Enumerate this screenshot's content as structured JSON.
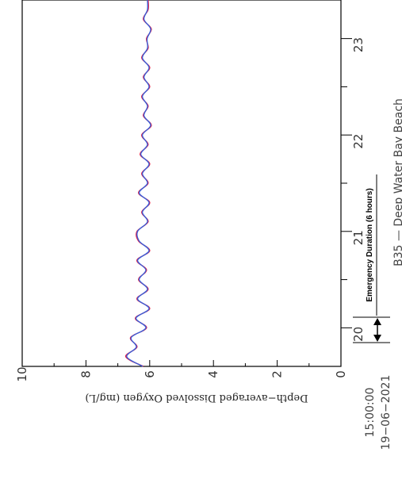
{
  "chart_data": {
    "type": "line",
    "orientation": "rotated-90",
    "ylabel": "Depth−averaged Dissolved Oxygen (mg/L)",
    "yticks": [
      "0",
      "2",
      "4",
      "6",
      "8",
      "10"
    ],
    "ylim": [
      0,
      10
    ],
    "xticks": [
      "20",
      "21",
      "22",
      "23"
    ],
    "xlim": [
      19.6,
      23.4
    ],
    "start_label": [
      "15:00:00",
      "19−06−2021"
    ],
    "annotation": "Emergency Duration  (6 hours)",
    "caption": "B35 — Deep Water Bay Beach",
    "grid": false,
    "series": [
      {
        "color": "#e8163c",
        "x": [
          19.6,
          19.7,
          19.8,
          19.9,
          20.0,
          20.1,
          20.2,
          20.3,
          20.4,
          20.5,
          20.6,
          20.7,
          20.8,
          20.9,
          21.0,
          21.1,
          21.2,
          21.3,
          21.4,
          21.5,
          21.6,
          21.7,
          21.8,
          21.9,
          22.0,
          22.1,
          22.2,
          22.3,
          22.4,
          22.5,
          22.6,
          22.7,
          22.8,
          22.9,
          23.0,
          23.1,
          23.2,
          23.3,
          23.4
        ],
        "y": [
          6.2,
          6.75,
          6.4,
          6.6,
          6.1,
          6.45,
          6.0,
          6.4,
          6.05,
          6.35,
          6.1,
          6.4,
          6.0,
          6.35,
          6.4,
          6.05,
          6.25,
          6.0,
          6.35,
          6.05,
          6.25,
          6.0,
          6.3,
          6.05,
          6.25,
          5.95,
          6.2,
          6.05,
          6.25,
          6.0,
          6.2,
          6.0,
          6.25,
          6.05,
          6.1,
          5.95,
          6.2,
          6.05,
          6.05
        ]
      },
      {
        "color": "#3a5fd8",
        "x": [
          19.6,
          19.7,
          19.8,
          19.9,
          20.0,
          20.1,
          20.2,
          20.3,
          20.4,
          20.5,
          20.6,
          20.7,
          20.8,
          20.9,
          21.0,
          21.1,
          21.2,
          21.3,
          21.4,
          21.5,
          21.6,
          21.7,
          21.8,
          21.9,
          22.0,
          22.1,
          22.2,
          22.3,
          22.4,
          22.5,
          22.6,
          22.7,
          22.8,
          22.9,
          23.0,
          23.1,
          23.2,
          23.3,
          23.4
        ],
        "y": [
          6.22,
          6.72,
          6.42,
          6.58,
          6.12,
          6.43,
          6.02,
          6.38,
          6.07,
          6.33,
          6.12,
          6.38,
          6.02,
          6.33,
          6.38,
          6.07,
          6.23,
          6.02,
          6.33,
          6.07,
          6.23,
          6.02,
          6.28,
          6.07,
          6.23,
          5.97,
          6.18,
          6.07,
          6.23,
          6.02,
          6.18,
          6.02,
          6.23,
          6.07,
          6.08,
          5.97,
          6.18,
          6.07,
          6.07
        ]
      }
    ]
  }
}
